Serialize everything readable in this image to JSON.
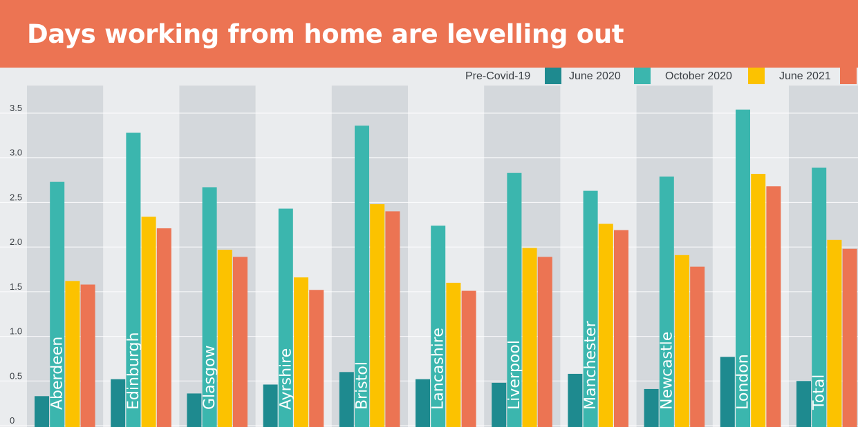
{
  "header": {
    "title": "Days working from home are levelling out"
  },
  "colors": {
    "header_bg": "#ec7453",
    "pre_covid": "#1e8a8f",
    "june_2020": "#3bb6ae",
    "october_2020": "#fcc200",
    "june_2021": "#ec7453",
    "band": "#d4d8dc",
    "background": "#eaecee"
  },
  "chart_data": {
    "type": "bar",
    "title": "Days working from home are levelling out",
    "xlabel": "",
    "ylabel": "",
    "ylim": [
      0,
      3.5
    ],
    "yticks": [
      "0",
      "0.5",
      "1.0",
      "1.5",
      "2.0",
      "2.5",
      "3.0",
      "3.5"
    ],
    "yticks_values": [
      0,
      0.5,
      1.0,
      1.5,
      2.0,
      2.5,
      3.0,
      3.5
    ],
    "grid": true,
    "legend_position": "top-right",
    "categories": [
      "Aberdeen",
      "Edinburgh",
      "Glasgow",
      "Ayrshire",
      "Bristol",
      "Lancashire",
      "Liverpool",
      "Manchester",
      "Newcastle",
      "London",
      "Total"
    ],
    "series": [
      {
        "name": "Pre-Covid-19",
        "values": [
          0.33,
          0.52,
          0.36,
          0.46,
          0.6,
          0.52,
          0.48,
          0.58,
          0.41,
          0.77,
          0.5
        ]
      },
      {
        "name": "June 2020",
        "values": [
          2.73,
          3.28,
          2.67,
          2.43,
          3.36,
          2.24,
          2.83,
          2.63,
          2.79,
          3.54,
          2.89
        ]
      },
      {
        "name": "October 2020",
        "values": [
          1.62,
          2.34,
          1.97,
          1.66,
          2.48,
          1.6,
          1.99,
          2.26,
          1.91,
          2.82,
          2.08
        ]
      },
      {
        "name": "June 2021",
        "values": [
          1.58,
          2.21,
          1.89,
          1.52,
          2.4,
          1.51,
          1.89,
          2.19,
          1.78,
          2.68,
          1.98
        ]
      }
    ]
  }
}
